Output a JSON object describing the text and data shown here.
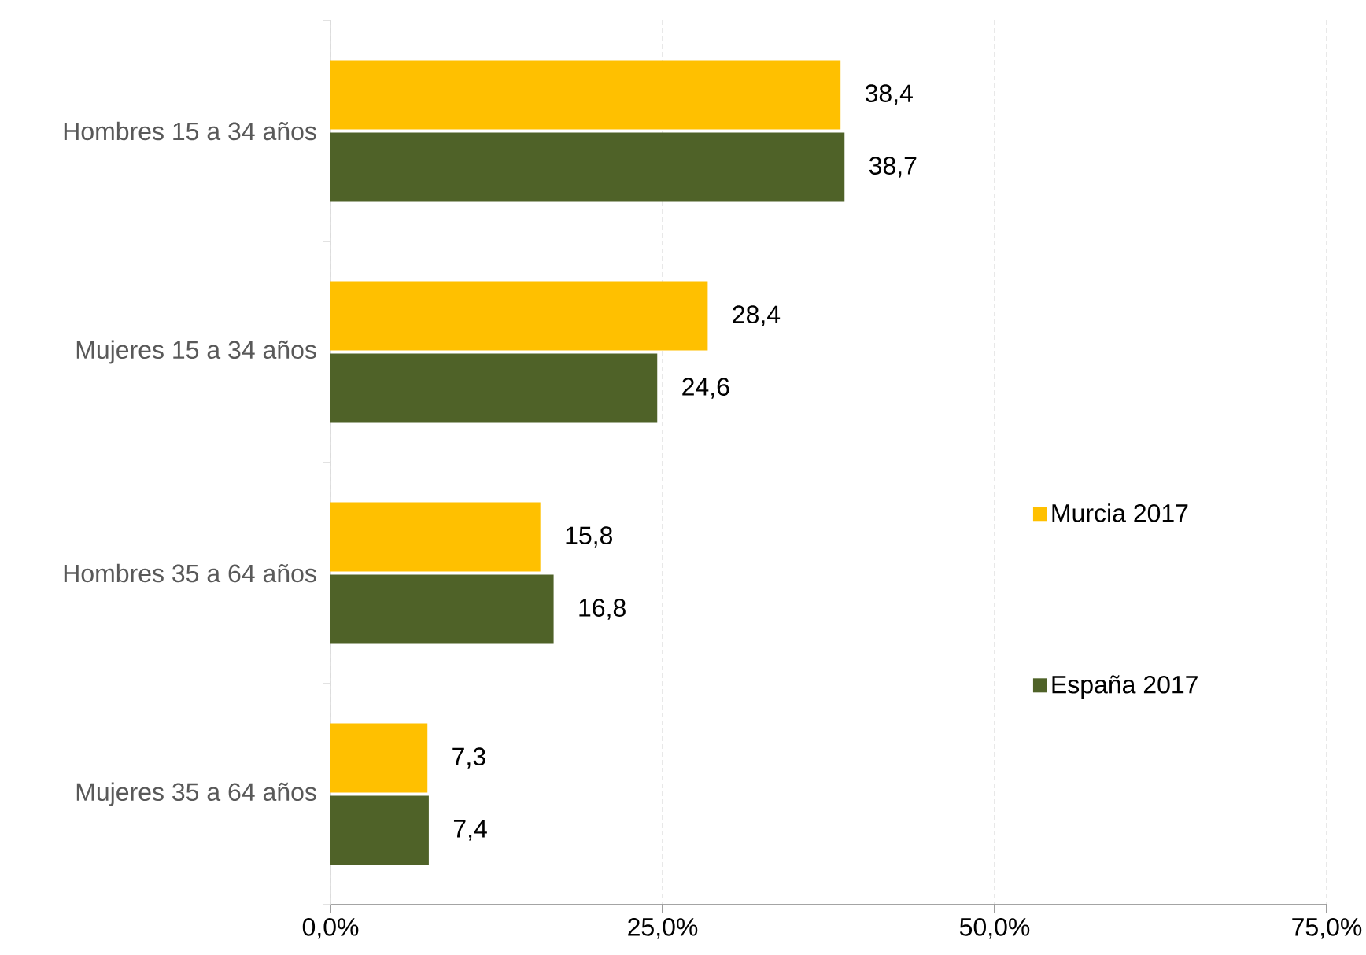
{
  "chart_data": {
    "type": "bar",
    "orientation": "horizontal",
    "categories": [
      "Hombres 15 a 34 años",
      "Mujeres 15 a 34 años",
      "Hombres 35 a 64 años",
      "Mujeres 35 a 64 años"
    ],
    "series": [
      {
        "name": "Murcia 2017",
        "color": "#ffc000",
        "values": [
          38.4,
          28.4,
          15.8,
          7.3
        ],
        "value_labels": [
          "38,4",
          "28,4",
          "15,8",
          "7,3"
        ]
      },
      {
        "name": "España 2017",
        "color": "#4f6228",
        "values": [
          38.7,
          24.6,
          16.8,
          7.4
        ],
        "value_labels": [
          "38,7",
          "24,6",
          "16,8",
          "7,4"
        ]
      }
    ],
    "xlim": [
      0,
      75
    ],
    "xticks": [
      {
        "value": 0,
        "label": "0,0%"
      },
      {
        "value": 25,
        "label": "25,0%"
      },
      {
        "value": 50,
        "label": "50,0%"
      },
      {
        "value": 75,
        "label": "75,0%"
      }
    ],
    "grid": "x",
    "legend": "right"
  }
}
